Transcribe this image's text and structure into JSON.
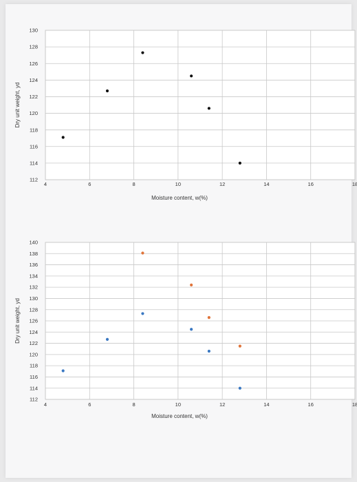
{
  "chart_data": [
    {
      "type": "scatter",
      "xlabel": "Moisture content, w(%)",
      "ylabel": "Dry unit weight, yd",
      "xlim": [
        4,
        18
      ],
      "ylim": [
        112,
        130
      ],
      "x_ticks": [
        4,
        6,
        8,
        10,
        12,
        14,
        16,
        18
      ],
      "y_ticks": [
        112,
        114,
        116,
        118,
        120,
        122,
        124,
        126,
        128,
        130
      ],
      "grid": true,
      "series": [
        {
          "color": "#111111",
          "x": [
            4.8,
            6.8,
            8.4,
            10.6,
            11.4,
            12.8
          ],
          "y": [
            117.1,
            122.7,
            127.3,
            124.5,
            120.6,
            114.0
          ]
        }
      ]
    },
    {
      "type": "scatter",
      "xlabel": "Moisture content, w(%)",
      "ylabel": "Dry unit weight, yd",
      "xlim": [
        4,
        18
      ],
      "ylim": [
        112,
        140
      ],
      "x_ticks": [
        4,
        6,
        8,
        10,
        12,
        14,
        16,
        18
      ],
      "y_ticks": [
        112,
        114,
        116,
        118,
        120,
        122,
        124,
        126,
        128,
        130,
        132,
        134,
        136,
        138,
        140
      ],
      "grid": true,
      "series": [
        {
          "color": "#3a78c2",
          "x": [
            4.8,
            6.8,
            8.4,
            10.6,
            11.4,
            12.8
          ],
          "y": [
            117.1,
            122.7,
            127.3,
            124.5,
            120.6,
            114.0
          ]
        },
        {
          "color": "#e0743a",
          "x": [
            8.4,
            10.6,
            11.4,
            12.8
          ],
          "y": [
            138.1,
            132.4,
            126.6,
            121.5
          ]
        }
      ]
    }
  ]
}
